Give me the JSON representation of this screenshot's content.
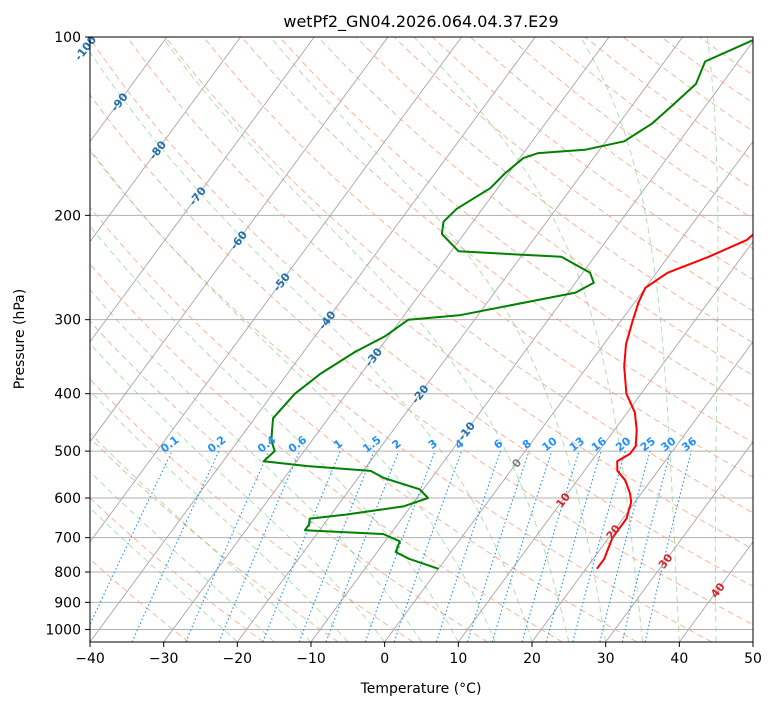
{
  "chart_data": {
    "type": "line",
    "title": "wetPf2_GN04.2026.064.04.37.E29",
    "xlabel": "Temperature (°C)",
    "ylabel": "Pressure (hPa)",
    "xlim": [
      -40,
      50
    ],
    "ylim": [
      1050,
      100
    ],
    "x_ticks": [
      -40,
      -30,
      -20,
      -10,
      0,
      10,
      20,
      30,
      40,
      50
    ],
    "y_ticks": [
      100,
      200,
      300,
      400,
      500,
      600,
      700,
      800,
      900,
      1000
    ],
    "grid": true,
    "series": [
      {
        "name": "temperature",
        "color": "#ff0000",
        "points": [
          [
            12.0,
            100
          ],
          [
            12.2,
            110
          ],
          [
            12.5,
            120
          ],
          [
            11.5,
            135
          ],
          [
            11.2,
            145
          ],
          [
            12.5,
            160
          ],
          [
            12.0,
            175
          ],
          [
            10.5,
            190
          ],
          [
            10.0,
            205
          ],
          [
            9.0,
            220
          ],
          [
            5.5,
            235
          ],
          [
            1.5,
            250
          ],
          [
            0.0,
            265
          ],
          [
            0.5,
            280
          ],
          [
            1.5,
            300
          ],
          [
            3.0,
            330
          ],
          [
            5.0,
            360
          ],
          [
            8.0,
            400
          ],
          [
            11.0,
            430
          ],
          [
            13.0,
            460
          ],
          [
            14.5,
            490
          ],
          [
            14.5,
            505
          ],
          [
            13.5,
            520
          ],
          [
            14.5,
            540
          ],
          [
            16.5,
            560
          ],
          [
            18.5,
            590
          ],
          [
            19.5,
            610
          ],
          [
            20.0,
            630
          ],
          [
            20.5,
            650
          ],
          [
            20.5,
            700
          ],
          [
            21.0,
            730
          ],
          [
            21.5,
            760
          ],
          [
            21.5,
            790
          ]
        ]
      },
      {
        "name": "dewpoint",
        "color": "#008000",
        "points": [
          [
            -9.5,
            100
          ],
          [
            -14.5,
            110
          ],
          [
            -13.5,
            120
          ],
          [
            -14.5,
            130
          ],
          [
            -15.5,
            140
          ],
          [
            -17.5,
            150
          ],
          [
            -22.0,
            155
          ],
          [
            -28.0,
            157
          ],
          [
            -29.5,
            160
          ],
          [
            -30.5,
            170
          ],
          [
            -31.0,
            180
          ],
          [
            -33.5,
            195
          ],
          [
            -34.0,
            205
          ],
          [
            -33.0,
            215
          ],
          [
            -29.0,
            230
          ],
          [
            -14.5,
            235
          ],
          [
            -9.0,
            250
          ],
          [
            -7.5,
            260
          ],
          [
            -9.0,
            270
          ],
          [
            -22.5,
            295
          ],
          [
            -29.0,
            300
          ],
          [
            -30.5,
            320
          ],
          [
            -33.0,
            340
          ],
          [
            -35.5,
            370
          ],
          [
            -37.0,
            400
          ],
          [
            -37.5,
            440
          ],
          [
            -36.5,
            460
          ],
          [
            -35.5,
            480
          ],
          [
            -34.0,
            500
          ],
          [
            -34.5,
            520
          ],
          [
            -28.0,
            530
          ],
          [
            -19.0,
            540
          ],
          [
            -16.5,
            555
          ],
          [
            -10.5,
            580
          ],
          [
            -8.5,
            600
          ],
          [
            -11.0,
            620
          ],
          [
            -18.0,
            640
          ],
          [
            -22.5,
            650
          ],
          [
            -22.0,
            665
          ],
          [
            -22.0,
            680
          ],
          [
            -11.0,
            690
          ],
          [
            -8.0,
            710
          ],
          [
            -7.5,
            740
          ],
          [
            -5.0,
            760
          ],
          [
            0.0,
            790
          ]
        ]
      }
    ],
    "mixing_ratio_labels": [
      "0.1",
      "0.2",
      "0.4",
      "0.6",
      "1",
      "1.5",
      "2",
      "3",
      "4",
      "6",
      "8",
      "10",
      "13",
      "16",
      "20",
      "25",
      "30",
      "36"
    ],
    "isotherm_labels": [
      "-100",
      "-90",
      "-80",
      "-70",
      "-60",
      "-50",
      "-40",
      "-30",
      "-20",
      "-10",
      "0",
      "10",
      "20",
      "30",
      "40"
    ]
  }
}
